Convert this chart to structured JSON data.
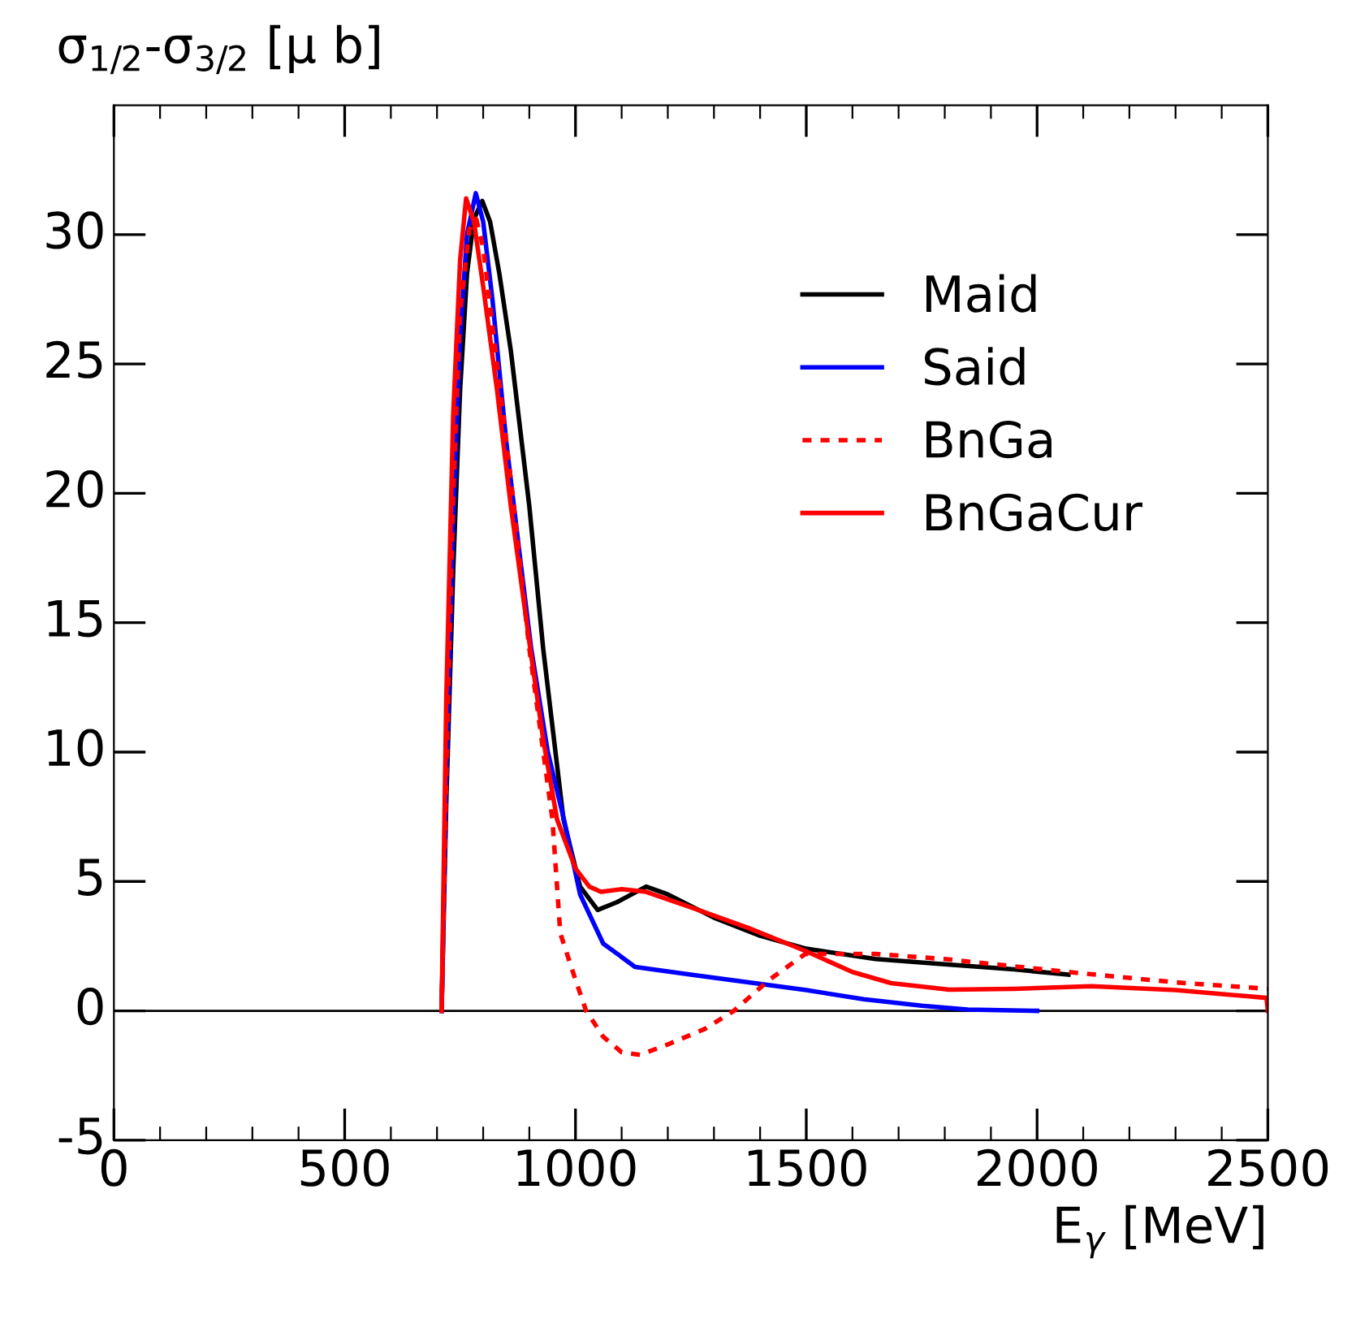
{
  "chart_data": {
    "type": "line",
    "xlabel": "E$_{γ}$ [MeV]",
    "ylabel": "σ$_{1/2}$-σ$_{3/2}$ [μ b]",
    "xlim": [
      0,
      2500
    ],
    "xticks": [
      0,
      500,
      1000,
      1500,
      2000,
      2500
    ],
    "ylim": [
      -5,
      35
    ],
    "yticks": [
      -5,
      0,
      5,
      10,
      15,
      20,
      25,
      30
    ],
    "grid": false,
    "legend": "top right",
    "marker": "none",
    "ref_lines": [
      {
        "axis": "y",
        "value": 0,
        "color": "#000000"
      }
    ],
    "series": [
      {
        "name": "Maid",
        "color": "#000000",
        "line_style": "solid",
        "x": [
          710,
          720,
          735,
          750,
          765,
          780,
          798,
          815,
          835,
          860,
          900,
          930,
          974,
          1010,
          1048,
          1090,
          1153,
          1200,
          1300,
          1400,
          1500,
          1650,
          1800,
          1950,
          2068
        ],
        "values": [
          0,
          8,
          17,
          24,
          28.5,
          30.6,
          31.3,
          30.5,
          28.5,
          25.5,
          19.5,
          14.0,
          7.4,
          4.8,
          3.9,
          4.2,
          4.8,
          4.5,
          3.6,
          2.9,
          2.4,
          2.0,
          1.8,
          1.6,
          1.4
        ]
      },
      {
        "name": "Said",
        "color": "#0000ff",
        "line_style": "solid",
        "x": [
          710,
          720,
          735,
          750,
          765,
          784,
          800,
          820,
          850,
          880,
          904,
          940,
          975,
          1010,
          1060,
          1129,
          1250,
          1375,
          1500,
          1624,
          1750,
          1850,
          2000
        ],
        "values": [
          0,
          9,
          19,
          26,
          30,
          31.6,
          30.5,
          27.5,
          22,
          17.5,
          14.0,
          10,
          7.4,
          4.5,
          2.6,
          1.7,
          1.4,
          1.1,
          0.8,
          0.45,
          0.2,
          0.05,
          0
        ]
      },
      {
        "name": "BnGa",
        "color": "#fe0000",
        "line_style": "dashed",
        "x": [
          710,
          720,
          735,
          750,
          770,
          785,
          800,
          830,
          860,
          900,
          950,
          967,
          1000,
          1023,
          1060,
          1100,
          1140,
          1200,
          1280,
          1343,
          1420,
          1498,
          1650,
          1800,
          2068,
          2300,
          2500
        ],
        "values": [
          0,
          9,
          20,
          27,
          30.2,
          30.6,
          29.5,
          25,
          20.5,
          14.0,
          7.4,
          3.0,
          1.2,
          0,
          -1.0,
          -1.6,
          -1.7,
          -1.3,
          -0.7,
          0,
          1.2,
          2.2,
          2.2,
          2.0,
          1.5,
          1.1,
          0.85
        ]
      },
      {
        "name": "BnGaCur",
        "color": "#ff0000",
        "line_style": "solid",
        "x": [
          710,
          720,
          735,
          750,
          763,
          780,
          800,
          830,
          860,
          902,
          930,
          960,
          1000,
          1030,
          1055,
          1100,
          1153,
          1250,
          1375,
          1500,
          1600,
          1684,
          1810,
          1950,
          2118,
          2300,
          2497,
          2500
        ],
        "values": [
          0,
          12,
          23,
          29,
          31.4,
          30.5,
          28,
          24,
          19.5,
          14.0,
          10.5,
          7.4,
          5.5,
          4.8,
          4.6,
          4.7,
          4.6,
          4.0,
          3.2,
          2.3,
          1.5,
          1.07,
          0.82,
          0.85,
          0.95,
          0.8,
          0.5,
          0
        ]
      }
    ]
  }
}
